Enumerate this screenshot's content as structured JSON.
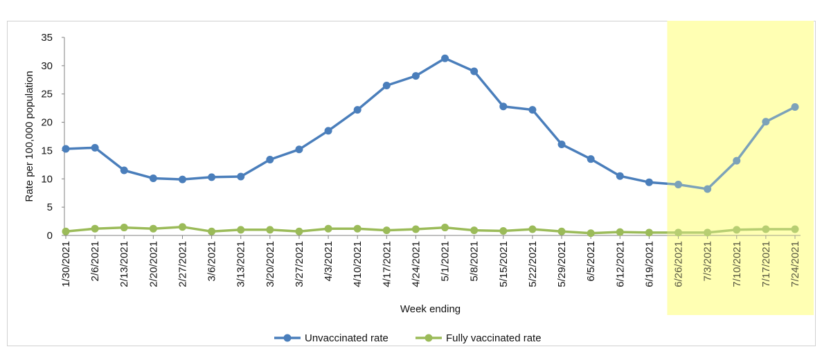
{
  "chart_data": {
    "type": "line",
    "title": "",
    "xlabel": "Week ending",
    "ylabel": "Rate per 100,000 population",
    "categories": [
      "1/30/2021",
      "2/6/2021",
      "2/13/2021",
      "2/20/2021",
      "2/27/2021",
      "3/6/2021",
      "3/13/2021",
      "3/20/2021",
      "3/27/2021",
      "4/3/2021",
      "4/10/2021",
      "4/17/2021",
      "4/24/2021",
      "5/1/2021",
      "5/8/2021",
      "5/15/2021",
      "5/22/2021",
      "5/29/2021",
      "6/5/2021",
      "6/12/2021",
      "6/19/2021",
      "6/26/2021",
      "7/3/2021",
      "7/10/2021",
      "7/17/2021",
      "7/24/2021"
    ],
    "series": [
      {
        "name": "Unvaccinated rate",
        "color": "#4a7ebb",
        "values": [
          15.3,
          15.5,
          11.5,
          10.1,
          9.9,
          10.3,
          10.4,
          13.4,
          15.2,
          18.5,
          22.2,
          26.5,
          28.2,
          31.3,
          29.0,
          22.8,
          22.2,
          16.1,
          13.5,
          10.5,
          9.4,
          9.0,
          8.2,
          13.2,
          20.1,
          22.7
        ]
      },
      {
        "name": "Fully vaccinated rate",
        "color": "#9bbb59",
        "values": [
          0.7,
          1.2,
          1.4,
          1.2,
          1.5,
          0.7,
          1.0,
          1.0,
          0.7,
          1.2,
          1.2,
          0.9,
          1.1,
          1.4,
          0.9,
          0.8,
          1.1,
          0.7,
          0.4,
          0.6,
          0.5,
          0.5,
          0.5,
          1.0,
          1.1,
          1.1
        ]
      }
    ],
    "ylim": [
      0,
      35
    ],
    "yticks": [
      0,
      5,
      10,
      15,
      20,
      25,
      30,
      35
    ],
    "grid": false,
    "legend_position": "bottom",
    "highlight": {
      "from": "6/26/2021",
      "to": "7/24/2021",
      "color": "#ffffb3"
    }
  }
}
